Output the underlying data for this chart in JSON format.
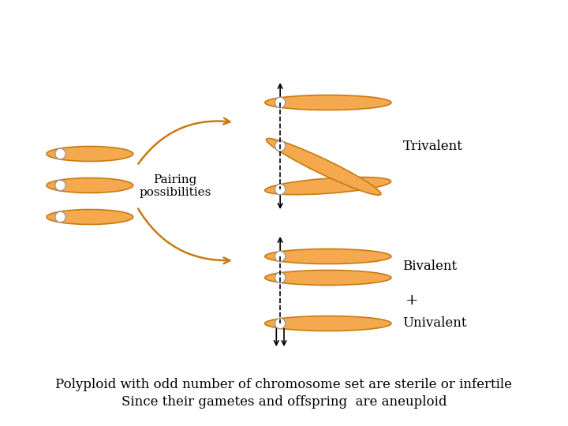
{
  "background_color": "#ffffff",
  "chrom_color": "#F5A94E",
  "chrom_edge_color": "#C87A10",
  "centromere_color": "#FFFFFF",
  "centromere_edge": "#999999",
  "arrow_color": "#000000",
  "curve_arrow_color": "#C87A10",
  "label_trivalent": "Trivalent",
  "label_bivalent": "Bivalent",
  "label_plus": "+",
  "label_univalent": "Univalent",
  "label_pairing_1": "Pairing",
  "label_pairing_2": "possibilities",
  "text_line1": "Polyploid with odd number of chromosome set are sterile or infertile",
  "text_line2": "Since their gametes and offspring  are aneuploid",
  "text_fontsize": 12,
  "label_fontsize": 11
}
